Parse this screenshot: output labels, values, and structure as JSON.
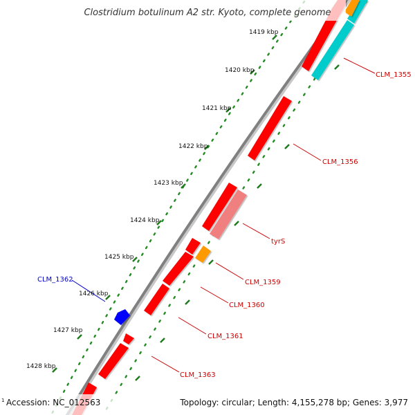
{
  "title": "Clostridium botulinum A2 str. Kyoto, complete genome",
  "kbp_ticks": [
    "1419 kbp",
    "1420 kbp",
    "1421 kbp",
    "1422 kbp",
    "1423 kbp",
    "1424 kbp",
    "1425 kbp",
    "1426 kbp",
    "1427 kbp",
    "1428 kbp"
  ],
  "gene_labels": [
    "CLM_1355",
    "CLM_1356",
    "tyrS",
    "CLM_1359",
    "CLM_1360",
    "CLM_1361",
    "CLM_1362",
    "CLM_1363"
  ],
  "colors": {
    "forward_gene": "#ff0000",
    "trna": "#f08080",
    "orange_gene": "#ff9900",
    "reverse_gene": "#0000ff",
    "cyan_feature": "#00cccc",
    "backbone": "#808080",
    "tick_dots": "#228b22",
    "label_red": "#cc0000",
    "label_blue": "#0000cc"
  },
  "footer": {
    "note_mark": "1",
    "accession": "Accession: NC_012563",
    "topology": "Topology: circular; Length: 4,155,278 bp; Genes: 3,977"
  }
}
